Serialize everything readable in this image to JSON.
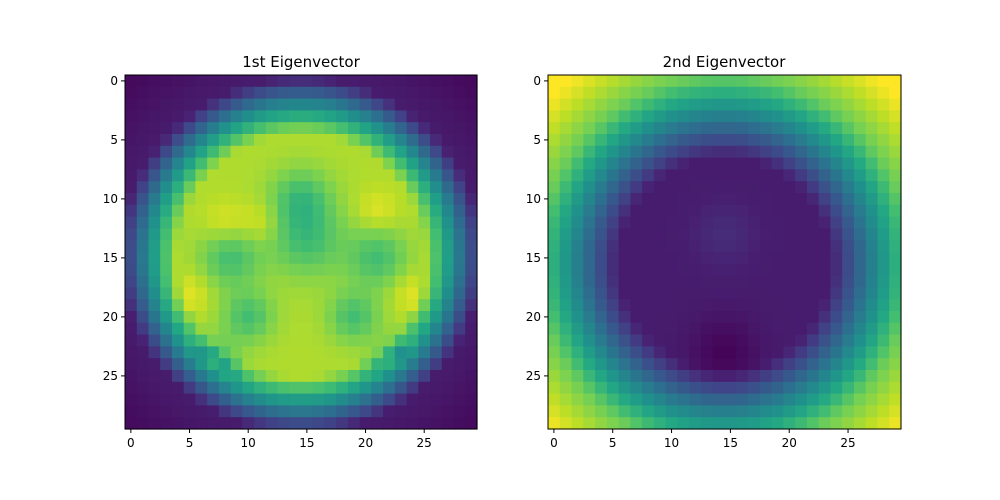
{
  "chart_data": [
    {
      "type": "heatmap",
      "title": "1st Eigenvector",
      "colormap": "viridis",
      "rows": 30,
      "cols": 30,
      "pattern": "bright-disk-on-dark-corners",
      "xticks": [
        0,
        5,
        10,
        15,
        20,
        25
      ],
      "yticks": [
        0,
        5,
        10,
        15,
        20,
        25
      ],
      "xlim": [
        -0.5,
        29.5
      ],
      "ylim": [
        29.5,
        -0.5
      ],
      "grid": false
    },
    {
      "type": "heatmap",
      "title": "2nd Eigenvector",
      "colormap": "viridis",
      "rows": 30,
      "cols": 30,
      "pattern": "dark-disk-on-bright-corners",
      "xticks": [
        0,
        5,
        10,
        15,
        20,
        25
      ],
      "yticks": [
        0,
        5,
        10,
        15,
        20,
        25
      ],
      "xlim": [
        -0.5,
        29.5
      ],
      "ylim": [
        29.5,
        -0.5
      ],
      "grid": false
    }
  ]
}
